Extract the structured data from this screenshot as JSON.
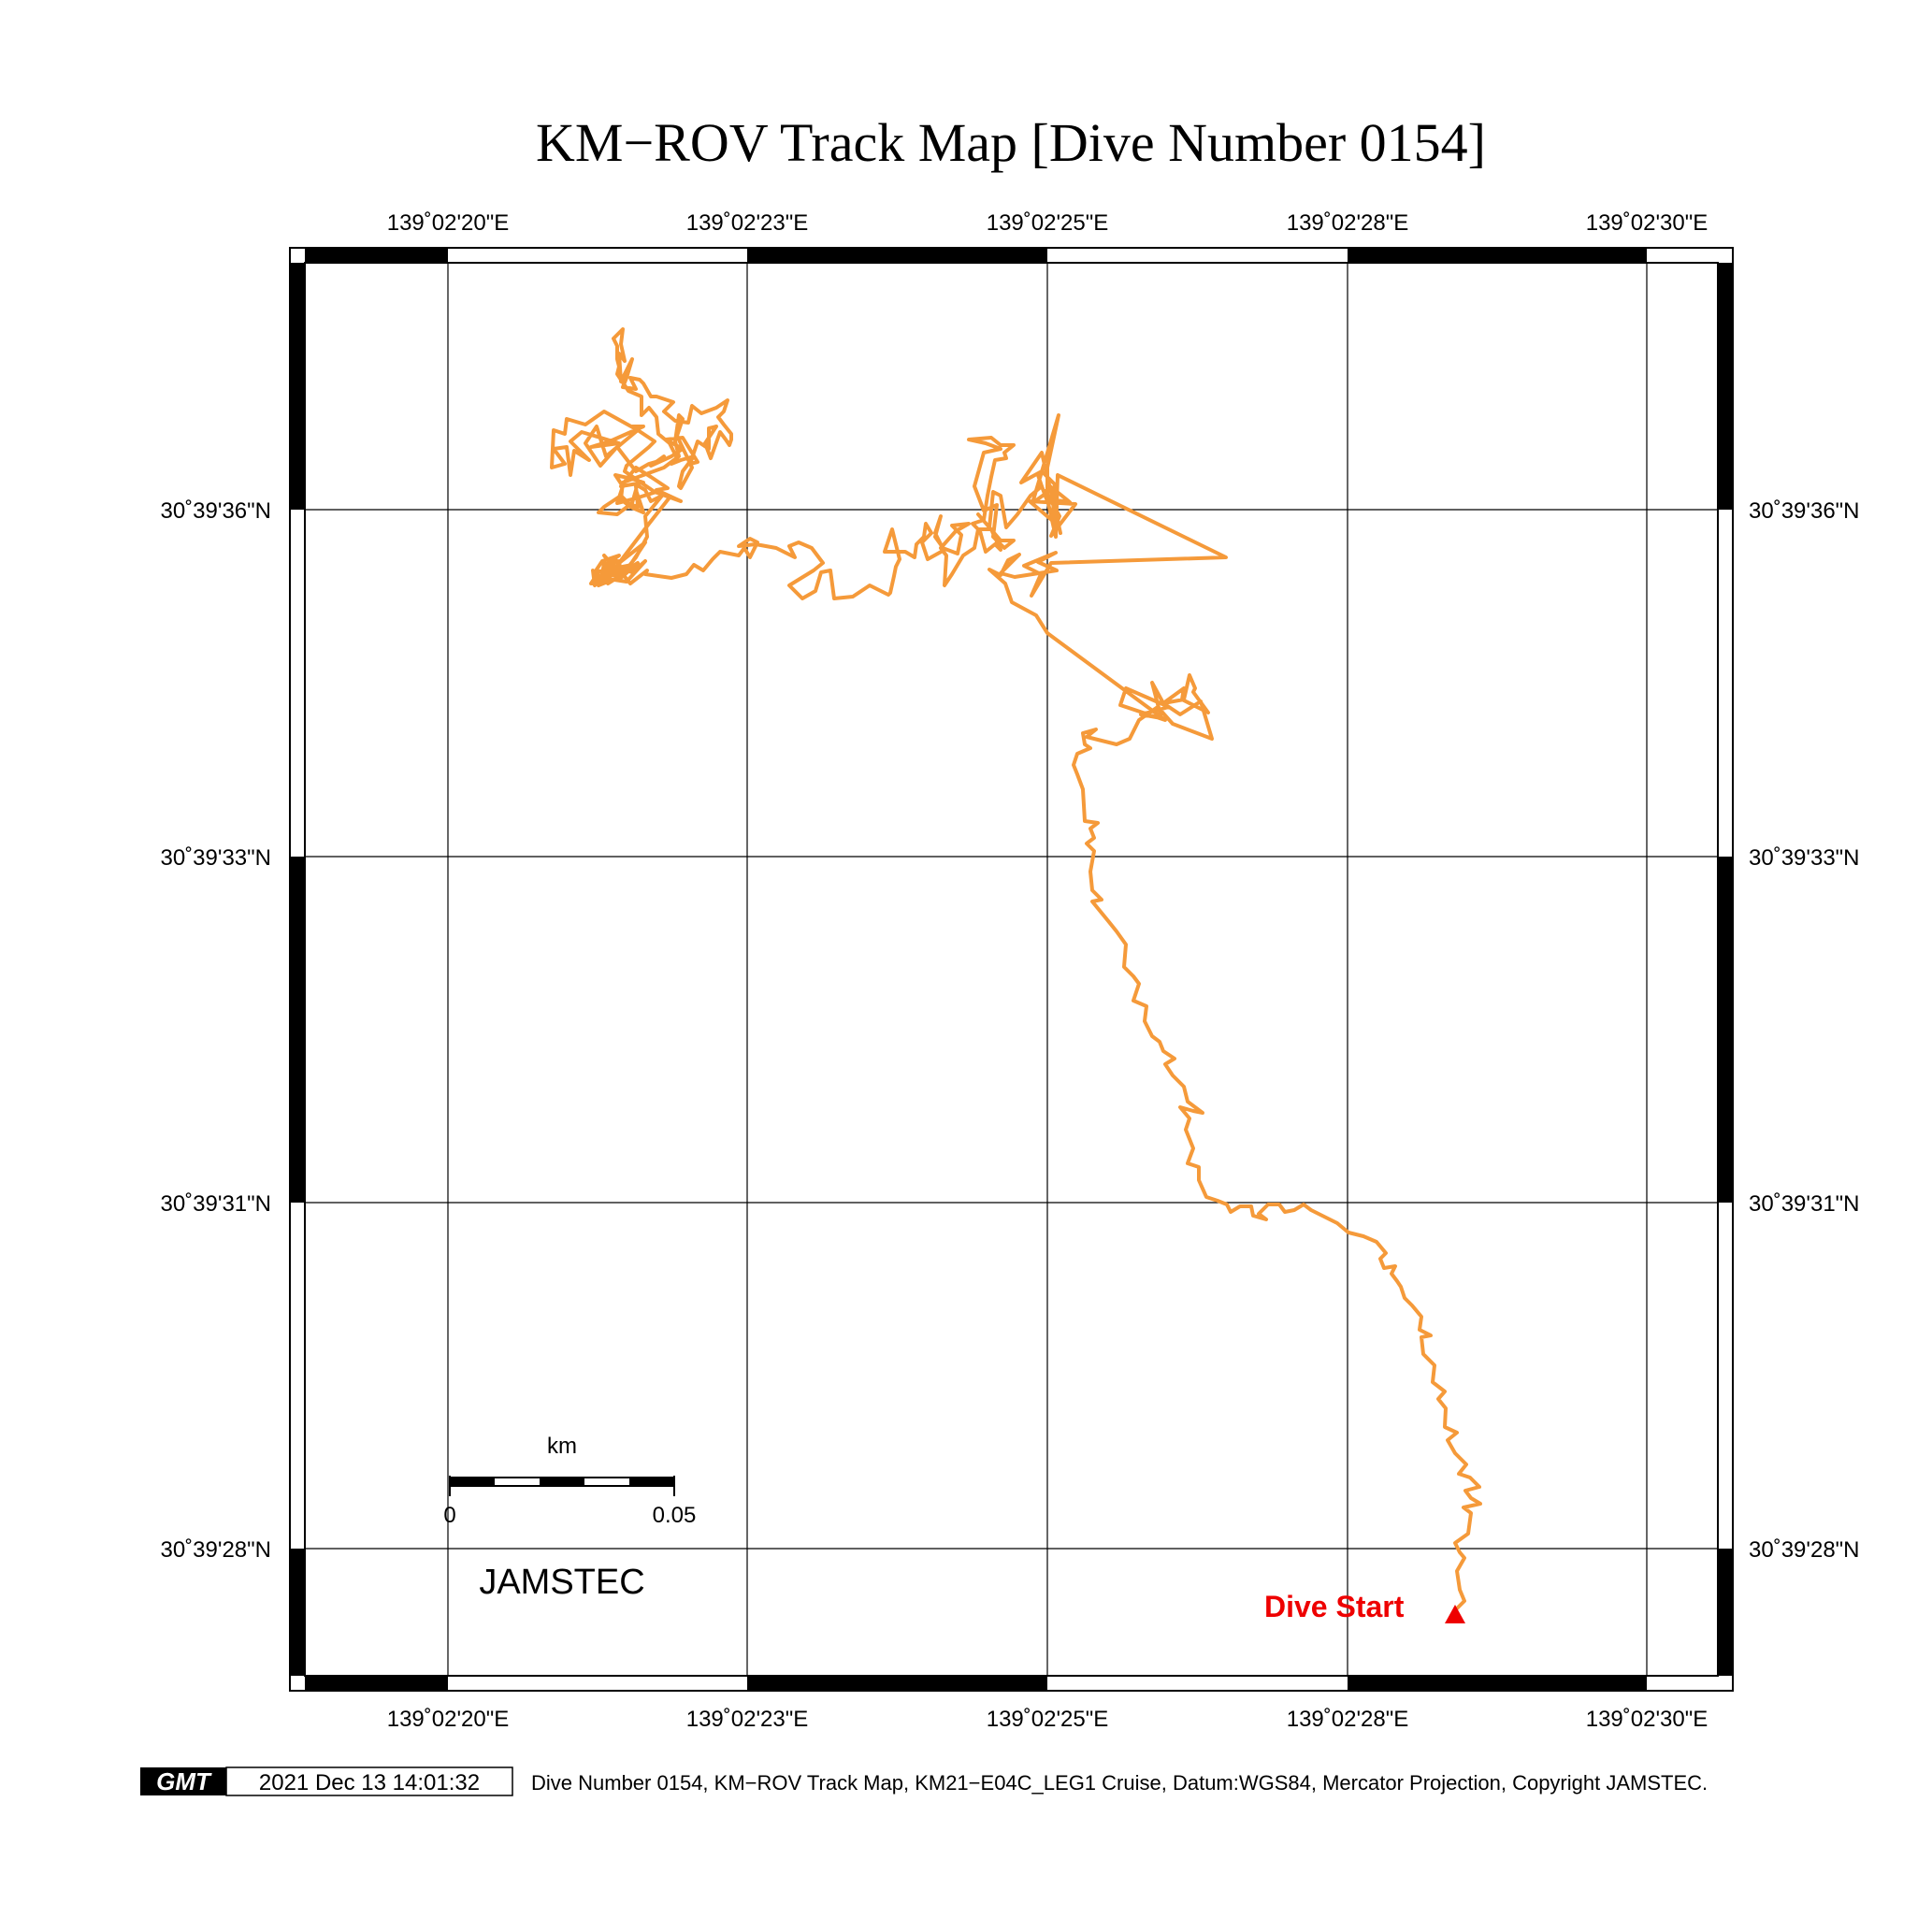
{
  "title": "KM−ROV Track Map [Dive Number 0154]",
  "lon_labels": [
    "139˚02'20\"E",
    "139˚02'23\"E",
    "139˚02'25\"E",
    "139˚02'28\"E",
    "139˚02'30\"E"
  ],
  "lat_labels": [
    "30˚39'36\"N",
    "30˚39'33\"N",
    "30˚39'31\"N",
    "30˚39'28\"N"
  ],
  "scale_bar": {
    "unit": "km",
    "start": "0",
    "end": "0.05"
  },
  "watermark": "JAMSTEC",
  "marker_label": "Dive Start",
  "footer": {
    "logo": "GMT",
    "timestamp": "2021 Dec 13 14:01:32",
    "caption": "Dive Number 0154, KM−ROV Track Map, KM21−E04C_LEG1 Cruise, Datum:WGS84, Mercator Projection, Copyright JAMSTEC."
  },
  "colors": {
    "track": "#f59a3a",
    "marker": "#ee0000",
    "grid": "#000000"
  }
}
